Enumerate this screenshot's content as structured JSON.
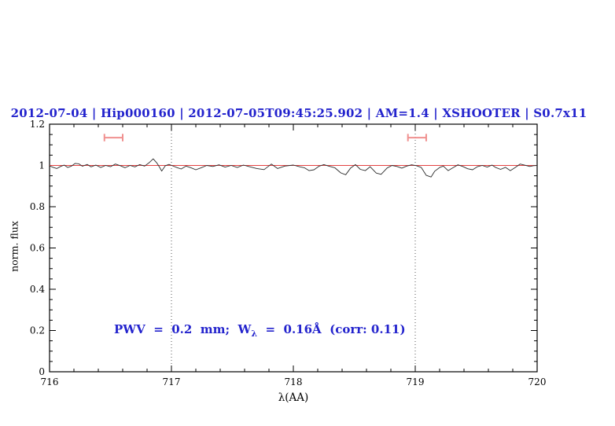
{
  "title": {
    "text": "2012-07-04 | Hip000160 | 2012-07-05T09:45:25.902 | AM=1.4 | XSHOOTER | S0.7x11",
    "color": "#2323cd"
  },
  "annotation": {
    "prefix": "PWV  =  0.2  mm;  W",
    "sub": "λ",
    "suffix": "  =  0.16Å  (corr: 0.11)",
    "color": "#2323cd"
  },
  "chart_data": {
    "type": "line",
    "title": "2012-07-04 | Hip000160 | 2012-07-05T09:45:25.902 | AM=1.4 | XSHOOTER | S0.7x11",
    "xlabel": "λ(AA)",
    "ylabel": "norm. flux",
    "xlim": [
      716,
      720
    ],
    "ylim": [
      0,
      1.2
    ],
    "grid": false,
    "x_major_ticks": [
      716,
      717,
      718,
      719,
      720
    ],
    "x_tick_labels": [
      "716",
      "717",
      "718",
      "719",
      "720"
    ],
    "x_minor_step": 0.2,
    "y_major_ticks": [
      0,
      0.2,
      0.4,
      0.6,
      0.8,
      1,
      1.2
    ],
    "y_tick_labels": [
      "0",
      "0.2",
      "0.4",
      "0.6",
      "0.8",
      "1",
      "1.2"
    ],
    "y_minor_step": 0.05,
    "axis_color": "#000000",
    "dotted_vlines": {
      "x": [
        717,
        719
      ],
      "color": "#555555"
    },
    "fit_line": {
      "y": 1.0,
      "x1": 716,
      "x2": 720,
      "color": "#e44242"
    },
    "error_markers": {
      "color": "#f0908f",
      "cap_halfheight_flux": 0.018,
      "items": [
        {
          "x1": 716.45,
          "x2": 716.6,
          "y": 1.135
        },
        {
          "x1": 718.94,
          "x2": 719.09,
          "y": 1.135
        }
      ]
    },
    "series": [
      {
        "name": "observed spectrum",
        "color": "#2b2b2b",
        "points": [
          [
            716.0,
            0.998
          ],
          [
            716.03,
            0.991
          ],
          [
            716.06,
            0.985
          ],
          [
            716.09,
            0.995
          ],
          [
            716.12,
            1.002
          ],
          [
            716.15,
            0.99
          ],
          [
            716.18,
            0.997
          ],
          [
            716.21,
            1.01
          ],
          [
            716.24,
            1.008
          ],
          [
            716.27,
            0.996
          ],
          [
            716.31,
            1.005
          ],
          [
            716.34,
            0.993
          ],
          [
            716.38,
            1.002
          ],
          [
            716.42,
            0.99
          ],
          [
            716.46,
            1.0
          ],
          [
            716.5,
            0.994
          ],
          [
            716.54,
            1.007
          ],
          [
            716.58,
            0.999
          ],
          [
            716.62,
            0.989
          ],
          [
            716.66,
            1.0
          ],
          [
            716.7,
            0.993
          ],
          [
            716.74,
            1.004
          ],
          [
            716.78,
            0.997
          ],
          [
            716.82,
            1.015
          ],
          [
            716.85,
            1.032
          ],
          [
            716.88,
            1.012
          ],
          [
            716.9,
            0.994
          ],
          [
            716.92,
            0.973
          ],
          [
            716.95,
            0.999
          ],
          [
            716.98,
            1.005
          ],
          [
            717.01,
            0.998
          ],
          [
            717.05,
            0.989
          ],
          [
            717.08,
            0.983
          ],
          [
            717.12,
            0.997
          ],
          [
            717.16,
            0.989
          ],
          [
            717.2,
            0.979
          ],
          [
            717.24,
            0.988
          ],
          [
            717.29,
            1.0
          ],
          [
            717.34,
            0.995
          ],
          [
            717.39,
            1.003
          ],
          [
            717.44,
            0.992
          ],
          [
            717.49,
            1.0
          ],
          [
            717.54,
            0.99
          ],
          [
            717.59,
            1.002
          ],
          [
            717.64,
            0.994
          ],
          [
            717.7,
            0.985
          ],
          [
            717.76,
            0.98
          ],
          [
            717.82,
            1.007
          ],
          [
            717.87,
            0.985
          ],
          [
            717.93,
            0.997
          ],
          [
            718.0,
            1.002
          ],
          [
            718.05,
            0.994
          ],
          [
            718.09,
            0.989
          ],
          [
            718.13,
            0.975
          ],
          [
            718.17,
            0.979
          ],
          [
            718.21,
            0.996
          ],
          [
            718.25,
            1.004
          ],
          [
            718.29,
            0.997
          ],
          [
            718.34,
            0.989
          ],
          [
            718.39,
            0.964
          ],
          [
            718.43,
            0.955
          ],
          [
            718.47,
            0.988
          ],
          [
            718.51,
            1.004
          ],
          [
            718.55,
            0.981
          ],
          [
            718.59,
            0.975
          ],
          [
            718.63,
            0.994
          ],
          [
            718.68,
            0.963
          ],
          [
            718.72,
            0.957
          ],
          [
            718.77,
            0.988
          ],
          [
            718.81,
            1.0
          ],
          [
            718.85,
            0.995
          ],
          [
            718.89,
            0.987
          ],
          [
            718.93,
            0.997
          ],
          [
            718.97,
            1.003
          ],
          [
            719.01,
            0.999
          ],
          [
            719.05,
            0.99
          ],
          [
            719.09,
            0.952
          ],
          [
            719.13,
            0.944
          ],
          [
            719.16,
            0.972
          ],
          [
            719.2,
            0.99
          ],
          [
            719.23,
            0.997
          ],
          [
            719.27,
            0.975
          ],
          [
            719.31,
            0.989
          ],
          [
            719.35,
            1.003
          ],
          [
            719.39,
            0.995
          ],
          [
            719.43,
            0.984
          ],
          [
            719.47,
            0.979
          ],
          [
            719.51,
            0.994
          ],
          [
            719.55,
            1.0
          ],
          [
            719.59,
            0.992
          ],
          [
            719.63,
            1.002
          ],
          [
            719.66,
            0.99
          ],
          [
            719.7,
            0.981
          ],
          [
            719.74,
            0.991
          ],
          [
            719.78,
            0.975
          ],
          [
            719.82,
            0.99
          ],
          [
            719.86,
            1.007
          ],
          [
            719.9,
            1.001
          ],
          [
            719.94,
            0.995
          ],
          [
            719.97,
            0.999
          ],
          [
            720.0,
            1.0
          ]
        ]
      }
    ]
  }
}
